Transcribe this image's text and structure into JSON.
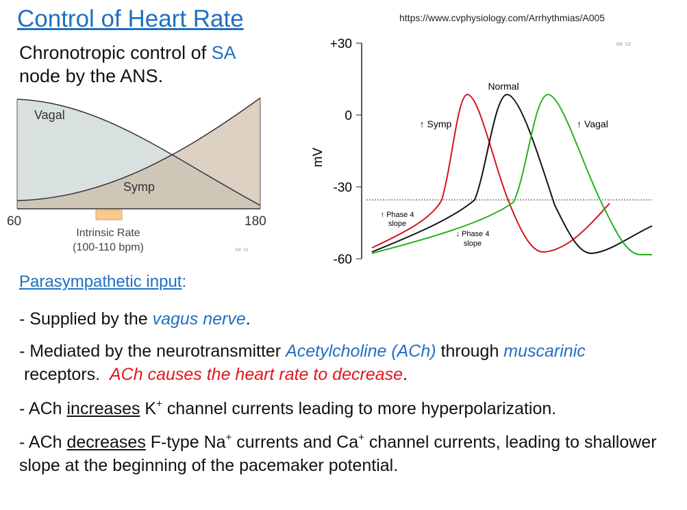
{
  "header": {
    "title": "Control of Heart Rate",
    "url": "https://www.cvphysiology.com/Arrhythmias/A005"
  },
  "intro": {
    "parts": [
      "Chronotropic control of ",
      "SA",
      "node by the ANS."
    ]
  },
  "left_diagram": {
    "vagal": "Vagal",
    "symp": "Symp",
    "min": "60",
    "max": "180",
    "intrinsic": "Intrinsic Rate",
    "intrinsic_range": "(100-110 bpm)",
    "credit": "RK '19"
  },
  "right_diagram": {
    "y_label": "mV",
    "ticks": [
      "+30",
      "0",
      "-30",
      "-60"
    ],
    "normal": "Normal",
    "symp": "↑ Symp",
    "vagal": "↑ Vagal",
    "phase4_up": [
      "↑ Phase 4",
      "slope"
    ],
    "phase4_down": [
      "↓ Phase 4",
      "slope"
    ],
    "credit": "RK '19"
  },
  "body": {
    "heading": "Parasympathetic input",
    "heading_colon": ":",
    "bullets": [
      [
        "- Supplied by the ",
        "vagus nerve",
        "."
      ],
      [
        "- Mediated by the neurotransmitter ",
        "Acetylcholine (ACh)",
        " through ",
        "muscarinic",
        " receptors.  ",
        "ACh causes the heart rate to decrease",
        "."
      ],
      [
        "- ACh ",
        "increases",
        " K",
        "+",
        " channel currents leading to more hyperpolarization."
      ],
      [
        "- ACh ",
        "decreases",
        " F-type Na",
        "+",
        " currents and Ca",
        "+",
        " channel currents, leading to shallower slope at the beginning of the pacemaker potential."
      ]
    ]
  }
}
